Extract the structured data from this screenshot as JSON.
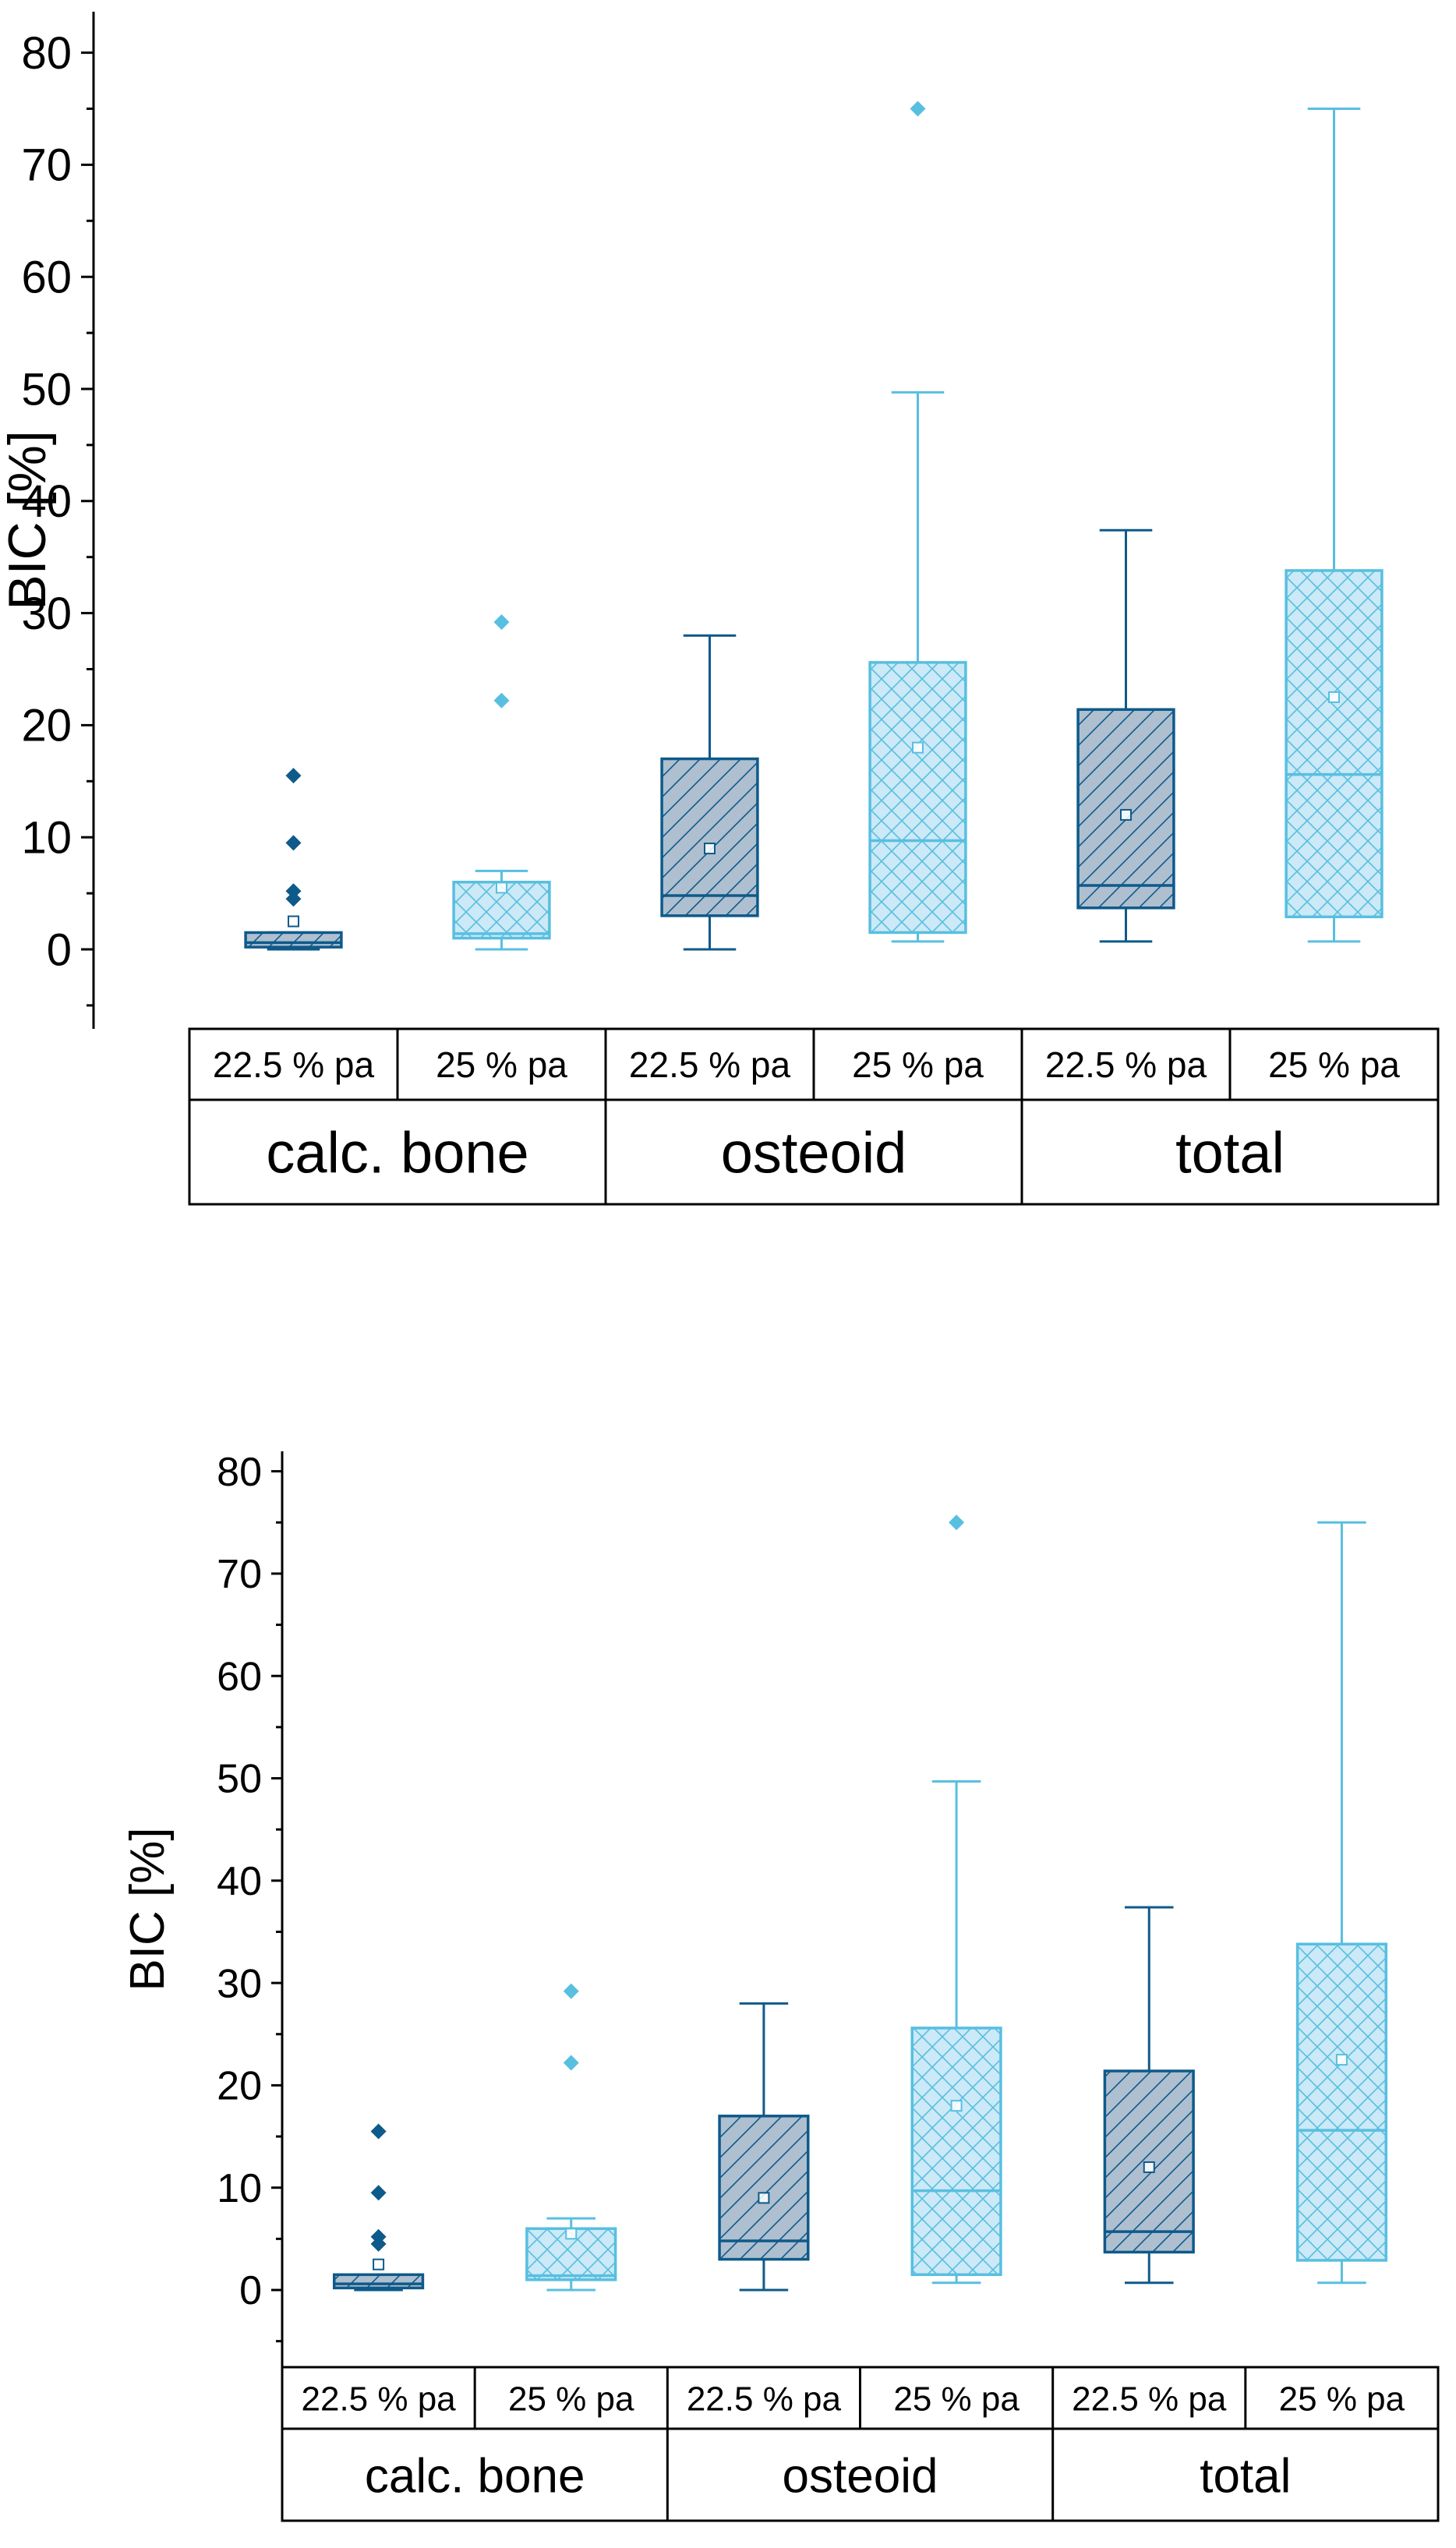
{
  "colors": {
    "dark": "#0e5a8a",
    "dark_fill": "#aebfd0",
    "light": "#58bfe0",
    "light_fill": "#cbe9f6",
    "axis": "#000000"
  },
  "chart_data": [
    {
      "type": "box",
      "title": "",
      "xlabel": "",
      "ylabel": "BIC [%]",
      "ylim": [
        -7,
        82
      ],
      "yticks": [
        "0",
        "10",
        "20",
        "30",
        "40",
        "50",
        "60",
        "70",
        "80"
      ],
      "grid": false,
      "groups": [
        {
          "label": "calc. bone",
          "subgroups": [
            "22.5 % pa",
            "25 % pa"
          ]
        },
        {
          "label": "osteoid",
          "subgroups": [
            "22.5 % pa",
            "25 % pa"
          ]
        },
        {
          "label": "total",
          "subgroups": [
            "22.5 % pa",
            "25 % pa"
          ]
        }
      ],
      "boxes": [
        {
          "group": "calc. bone",
          "series": "22.5 % pa",
          "whisker_low": 0,
          "q1": 0.2,
          "median": 0.6,
          "q3": 1.5,
          "whisker_high": 1.5,
          "mean": 2.5,
          "outliers": [
            4.5,
            5.2,
            9.5,
            15.5
          ]
        },
        {
          "group": "calc. bone",
          "series": "25 % pa",
          "whisker_low": 0,
          "q1": 1,
          "median": 1.4,
          "q3": 6,
          "whisker_high": 7,
          "mean": 5.5,
          "outliers": [
            22.2,
            29.2
          ]
        },
        {
          "group": "osteoid",
          "series": "22.5 % pa",
          "whisker_low": 0,
          "q1": 3,
          "median": 4.8,
          "q3": 17,
          "whisker_high": 28,
          "mean": 9,
          "outliers": []
        },
        {
          "group": "osteoid",
          "series": "25 % pa",
          "whisker_low": 0.7,
          "q1": 1.5,
          "median": 9.7,
          "q3": 25.6,
          "whisker_high": 49.7,
          "mean": 18,
          "outliers": [
            75
          ]
        },
        {
          "group": "total",
          "series": "22.5 % pa",
          "whisker_low": 0.7,
          "q1": 3.7,
          "median": 5.7,
          "q3": 21.4,
          "whisker_high": 37.4,
          "mean": 12,
          "outliers": []
        },
        {
          "group": "total",
          "series": "25 % pa",
          "whisker_low": 0.7,
          "q1": 2.9,
          "median": 15.6,
          "q3": 33.8,
          "whisker_high": 75,
          "mean": 22.5,
          "outliers": []
        }
      ]
    },
    {
      "type": "box",
      "title": "",
      "xlabel": "",
      "ylabel": "BIC [%]",
      "ylim": [
        -5,
        82
      ],
      "yticks": [
        "0",
        "10",
        "20",
        "30",
        "40",
        "50",
        "60",
        "70",
        "80"
      ],
      "grid": false,
      "groups": [
        {
          "label": "calc. bone",
          "subgroups": [
            "22.5 % pa",
            "25 % pa"
          ]
        },
        {
          "label": "osteoid",
          "subgroups": [
            "22.5 % pa",
            "25 % pa"
          ]
        },
        {
          "label": "total",
          "subgroups": [
            "22.5 % pa",
            "25 % pa"
          ]
        }
      ],
      "boxes": [
        {
          "group": "calc. bone",
          "series": "22.5 % pa",
          "whisker_low": 0,
          "q1": 0.2,
          "median": 0.6,
          "q3": 1.5,
          "whisker_high": 1.5,
          "mean": 2.5,
          "outliers": [
            4.5,
            5.2,
            9.5,
            15.5
          ]
        },
        {
          "group": "calc. bone",
          "series": "25 % pa",
          "whisker_low": 0,
          "q1": 1,
          "median": 1.4,
          "q3": 6,
          "whisker_high": 7,
          "mean": 5.5,
          "outliers": [
            22.2,
            29.2
          ]
        },
        {
          "group": "osteoid",
          "series": "22.5 % pa",
          "whisker_low": 0,
          "q1": 3,
          "median": 4.8,
          "q3": 17,
          "whisker_high": 28,
          "mean": 9,
          "outliers": []
        },
        {
          "group": "osteoid",
          "series": "25 % pa",
          "whisker_low": 0.7,
          "q1": 1.5,
          "median": 9.7,
          "q3": 25.6,
          "whisker_high": 49.7,
          "mean": 18,
          "outliers": [
            75
          ]
        },
        {
          "group": "total",
          "series": "22.5 % pa",
          "whisker_low": 0.7,
          "q1": 3.7,
          "median": 5.7,
          "q3": 21.4,
          "whisker_high": 37.4,
          "mean": 12,
          "outliers": []
        },
        {
          "group": "total",
          "series": "25 % pa",
          "whisker_low": 0.7,
          "q1": 2.9,
          "median": 15.6,
          "q3": 33.8,
          "whisker_high": 75,
          "mean": 22.5,
          "outliers": []
        }
      ]
    }
  ]
}
